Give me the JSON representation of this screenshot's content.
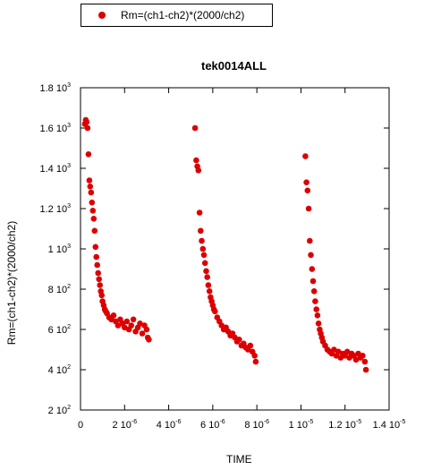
{
  "chart_data": {
    "type": "scatter",
    "title": "tek0014ALL",
    "xlabel": "TIME",
    "ylabel": "Rm=(ch1-ch2)*(2000/ch2)",
    "xlim": [
      0,
      1.4e-05
    ],
    "ylim": [
      200,
      1800
    ],
    "grid": false,
    "legend": {
      "position": "top-left, outside plot",
      "entries": [
        "Rm=(ch1-ch2)*(2000/ch2)"
      ]
    },
    "x_ticks": [
      {
        "base": "0",
        "exp": ""
      },
      {
        "base": "2 10",
        "exp": "-6"
      },
      {
        "base": "4 10",
        "exp": "-6"
      },
      {
        "base": "6 10",
        "exp": "-6"
      },
      {
        "base": "8 10",
        "exp": "-6"
      },
      {
        "base": "1 10",
        "exp": "-5"
      },
      {
        "base": "1.2 10",
        "exp": "-5"
      },
      {
        "base": "1.4 10",
        "exp": "-5"
      }
    ],
    "y_ticks": [
      {
        "base": "2 10",
        "exp": "2"
      },
      {
        "base": "4 10",
        "exp": "2"
      },
      {
        "base": "6 10",
        "exp": "2"
      },
      {
        "base": "8 10",
        "exp": "2"
      },
      {
        "base": "1 10",
        "exp": "3"
      },
      {
        "base": "1.2 10",
        "exp": "3"
      },
      {
        "base": "1.4 10",
        "exp": "3"
      },
      {
        "base": "1.6 10",
        "exp": "3"
      },
      {
        "base": "1.8 10",
        "exp": "3"
      }
    ],
    "x_tick_values": [
      0,
      2e-06,
      4e-06,
      6e-06,
      8e-06,
      1e-05,
      1.2e-05,
      1.4e-05
    ],
    "y_tick_values": [
      200,
      400,
      600,
      800,
      1000,
      1200,
      1400,
      1600,
      1800
    ],
    "series": [
      {
        "name": "Rm=(ch1-ch2)*(2000/ch2)",
        "color": "#dd0000",
        "points": [
          [
            2e-07,
            1620
          ],
          [
            2.4e-07,
            1640
          ],
          [
            2.8e-07,
            1630
          ],
          [
            3.2e-07,
            1600
          ],
          [
            3.6e-07,
            1470
          ],
          [
            4e-07,
            1340
          ],
          [
            4.4e-07,
            1310
          ],
          [
            4.8e-07,
            1280
          ],
          [
            5.2e-07,
            1230
          ],
          [
            5.6e-07,
            1190
          ],
          [
            6e-07,
            1150
          ],
          [
            6.4e-07,
            1090
          ],
          [
            6.8e-07,
            1010
          ],
          [
            7.2e-07,
            960
          ],
          [
            7.6e-07,
            920
          ],
          [
            8e-07,
            880
          ],
          [
            8.4e-07,
            850
          ],
          [
            8.8e-07,
            820
          ],
          [
            9.2e-07,
            790
          ],
          [
            9.6e-07,
            770
          ],
          [
            1e-06,
            740
          ],
          [
            1.05e-06,
            720
          ],
          [
            1.1e-06,
            700
          ],
          [
            1.15e-06,
            690
          ],
          [
            1.2e-06,
            680
          ],
          [
            1.3e-06,
            660
          ],
          [
            1.4e-06,
            650
          ],
          [
            1.5e-06,
            670
          ],
          [
            1.6e-06,
            640
          ],
          [
            1.7e-06,
            620
          ],
          [
            1.8e-06,
            650
          ],
          [
            1.9e-06,
            630
          ],
          [
            2e-06,
            610
          ],
          [
            2.1e-06,
            640
          ],
          [
            2.2e-06,
            600
          ],
          [
            2.3e-06,
            620
          ],
          [
            2.4e-06,
            650
          ],
          [
            2.5e-06,
            590
          ],
          [
            2.6e-06,
            610
          ],
          [
            2.7e-06,
            630
          ],
          [
            2.8e-06,
            580
          ],
          [
            2.9e-06,
            620
          ],
          [
            3e-06,
            600
          ],
          [
            3.05e-06,
            560
          ],
          [
            3.1e-06,
            550
          ],
          [
            5.2e-06,
            1600
          ],
          [
            5.25e-06,
            1440
          ],
          [
            5.3e-06,
            1410
          ],
          [
            5.35e-06,
            1390
          ],
          [
            5.4e-06,
            1180
          ],
          [
            5.45e-06,
            1090
          ],
          [
            5.5e-06,
            1040
          ],
          [
            5.55e-06,
            1000
          ],
          [
            5.6e-06,
            970
          ],
          [
            5.65e-06,
            930
          ],
          [
            5.7e-06,
            890
          ],
          [
            5.75e-06,
            860
          ],
          [
            5.8e-06,
            820
          ],
          [
            5.85e-06,
            790
          ],
          [
            5.9e-06,
            760
          ],
          [
            5.95e-06,
            740
          ],
          [
            6e-06,
            720
          ],
          [
            6.05e-06,
            700
          ],
          [
            6.1e-06,
            690
          ],
          [
            6.2e-06,
            660
          ],
          [
            6.3e-06,
            640
          ],
          [
            6.4e-06,
            620
          ],
          [
            6.5e-06,
            600
          ],
          [
            6.6e-06,
            610
          ],
          [
            6.7e-06,
            590
          ],
          [
            6.8e-06,
            570
          ],
          [
            6.9e-06,
            580
          ],
          [
            7e-06,
            560
          ],
          [
            7.1e-06,
            540
          ],
          [
            7.2e-06,
            550
          ],
          [
            7.3e-06,
            520
          ],
          [
            7.4e-06,
            530
          ],
          [
            7.5e-06,
            510
          ],
          [
            7.6e-06,
            500
          ],
          [
            7.7e-06,
            520
          ],
          [
            7.8e-06,
            490
          ],
          [
            7.9e-06,
            470
          ],
          [
            7.95e-06,
            440
          ],
          [
            1.02e-05,
            1460
          ],
          [
            1.025e-05,
            1330
          ],
          [
            1.03e-05,
            1290
          ],
          [
            1.035e-05,
            1200
          ],
          [
            1.04e-05,
            1040
          ],
          [
            1.045e-05,
            970
          ],
          [
            1.05e-05,
            900
          ],
          [
            1.055e-05,
            840
          ],
          [
            1.06e-05,
            790
          ],
          [
            1.065e-05,
            740
          ],
          [
            1.07e-05,
            700
          ],
          [
            1.075e-05,
            670
          ],
          [
            1.08e-05,
            630
          ],
          [
            1.085e-05,
            600
          ],
          [
            1.09e-05,
            580
          ],
          [
            1.095e-05,
            560
          ],
          [
            1.1e-05,
            540
          ],
          [
            1.11e-05,
            520
          ],
          [
            1.12e-05,
            500
          ],
          [
            1.13e-05,
            490
          ],
          [
            1.14e-05,
            480
          ],
          [
            1.15e-05,
            500
          ],
          [
            1.16e-05,
            470
          ],
          [
            1.17e-05,
            490
          ],
          [
            1.18e-05,
            460
          ],
          [
            1.19e-05,
            480
          ],
          [
            1.2e-05,
            470
          ],
          [
            1.21e-05,
            490
          ],
          [
            1.22e-05,
            460
          ],
          [
            1.23e-05,
            480
          ],
          [
            1.24e-05,
            470
          ],
          [
            1.25e-05,
            450
          ],
          [
            1.26e-05,
            480
          ],
          [
            1.27e-05,
            460
          ],
          [
            1.28e-05,
            470
          ],
          [
            1.29e-05,
            440
          ],
          [
            1.295e-05,
            400
          ]
        ]
      }
    ]
  }
}
